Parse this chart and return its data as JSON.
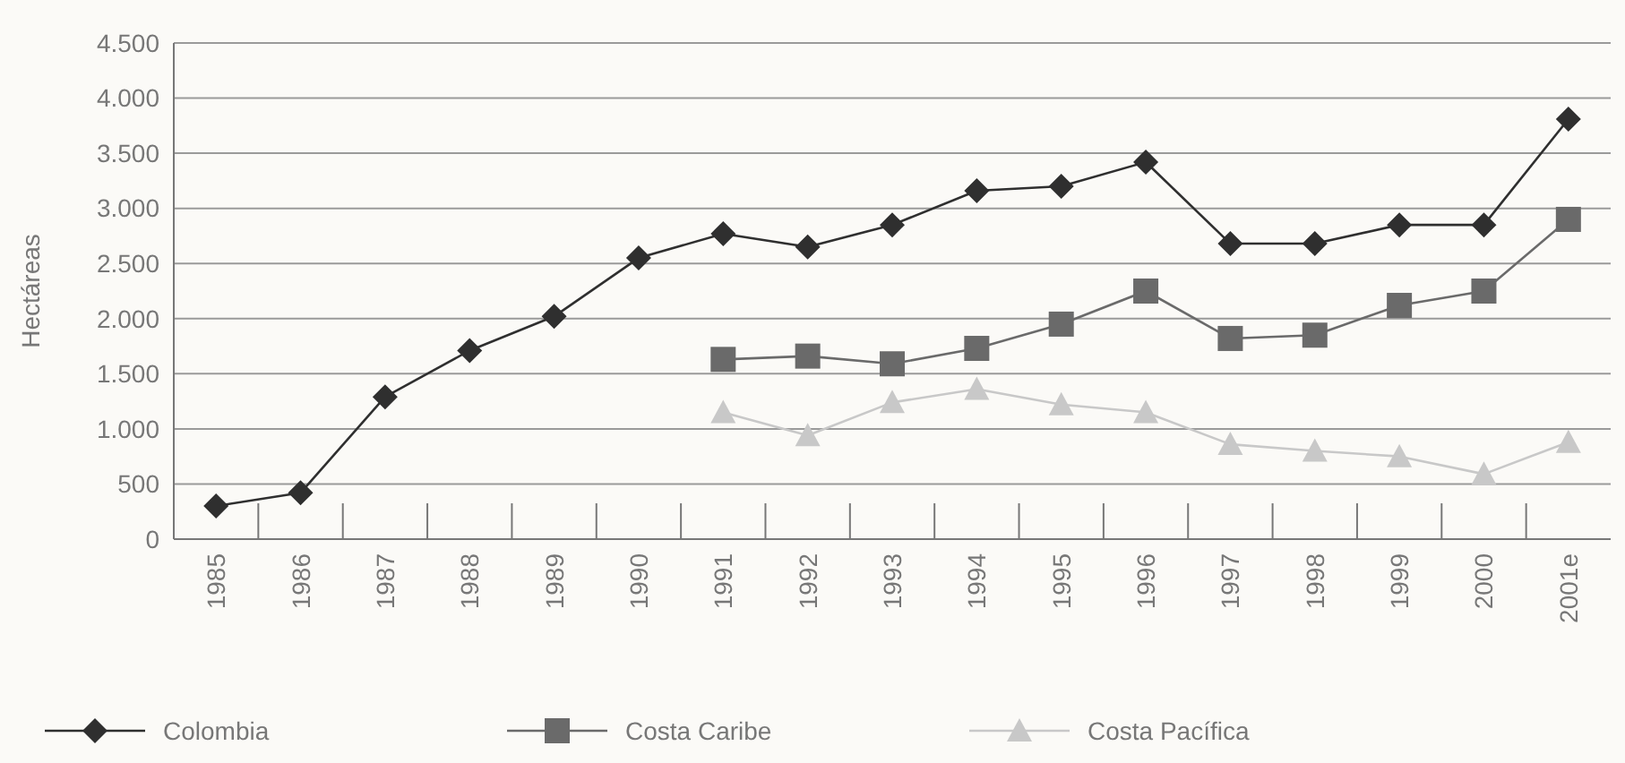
{
  "chart_data": {
    "type": "line",
    "ylabel": "Hectáreas",
    "categories": [
      "1985",
      "1986",
      "1987",
      "1988",
      "1989",
      "1990",
      "1991",
      "1992",
      "1993",
      "1994",
      "1995",
      "1996",
      "1997",
      "1998",
      "1999",
      "2000",
      "2001e"
    ],
    "series": [
      {
        "name": "Colombia",
        "color": "#2f2f2f",
        "marker": "diamond",
        "values": [
          300,
          420,
          1290,
          1710,
          2020,
          2550,
          2770,
          2650,
          2850,
          3160,
          3200,
          3420,
          2680,
          2680,
          2850,
          2850,
          3810
        ]
      },
      {
        "name": "Costa Caribe",
        "color": "#6a6a6a",
        "marker": "square",
        "values": [
          null,
          null,
          null,
          null,
          null,
          null,
          1630,
          1660,
          1590,
          1730,
          1950,
          2250,
          1820,
          1850,
          2120,
          2250,
          2900
        ]
      },
      {
        "name": "Costa Pacífica",
        "color": "#c8c8c8",
        "marker": "triangle",
        "values": [
          null,
          null,
          null,
          null,
          null,
          null,
          1150,
          940,
          1240,
          1360,
          1220,
          1150,
          860,
          800,
          750,
          590,
          880
        ]
      }
    ],
    "ylim": [
      0,
      4500
    ],
    "yticks": [
      {
        "value": 0,
        "label": "0"
      },
      {
        "value": 500,
        "label": "500"
      },
      {
        "value": 1000,
        "label": "1.000"
      },
      {
        "value": 1500,
        "label": "1.500"
      },
      {
        "value": 2000,
        "label": "2.000"
      },
      {
        "value": 2500,
        "label": "2.500"
      },
      {
        "value": 3000,
        "label": "3.000"
      },
      {
        "value": 3500,
        "label": "3.500"
      },
      {
        "value": 4000,
        "label": "4.000"
      },
      {
        "value": 4500,
        "label": "4.500"
      }
    ],
    "grid": "y",
    "legend": "bottom"
  }
}
